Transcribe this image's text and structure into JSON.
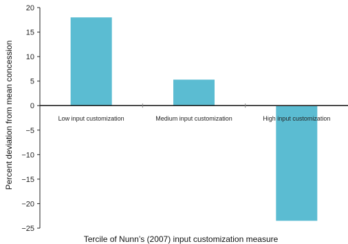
{
  "chart_data": {
    "type": "bar",
    "categories": [
      "Low input customization",
      "Medium input customization",
      "High input customization"
    ],
    "values": [
      18.0,
      5.3,
      -23.5
    ],
    "xlabel": "Tercile of Nunn’s (2007) input customization measure",
    "ylabel": "Percent deviation from mean concession",
    "ylim": [
      -25,
      20
    ],
    "yticks": [
      20,
      15,
      10,
      5,
      0,
      -5,
      -10,
      -15,
      -20,
      -25
    ],
    "ytick_labels": [
      "20",
      "15",
      "10",
      "5",
      "0",
      "−5",
      "−10",
      "−15",
      "−20",
      "−25"
    ],
    "grid": false,
    "legend": "none",
    "bar_color": "#5bbcd2",
    "axis_color": "#222222"
  }
}
